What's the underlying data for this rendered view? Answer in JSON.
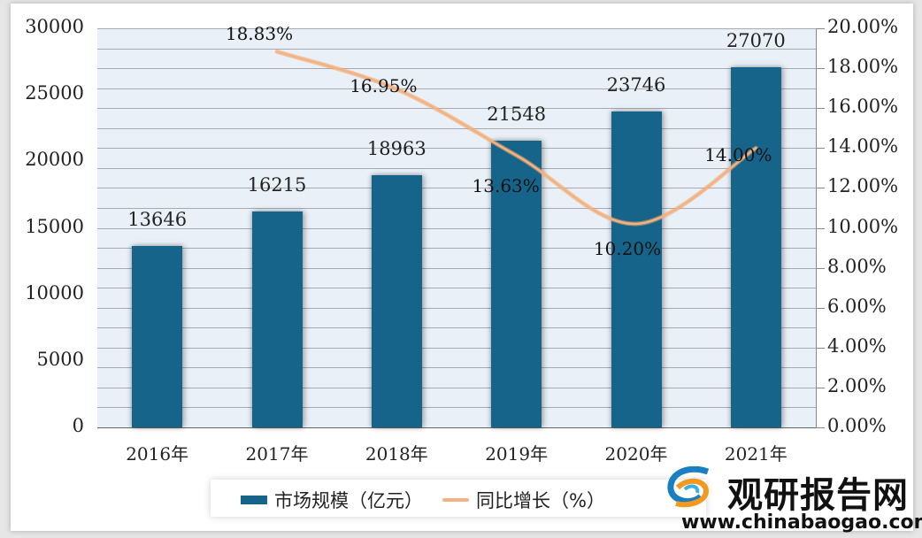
{
  "chart_data": {
    "type": "bar+line",
    "title": "",
    "categories": [
      "2016年",
      "2017年",
      "2018年",
      "2019年",
      "2020年",
      "2021年"
    ],
    "series": [
      {
        "name": "市场规模（亿元）",
        "type": "bar",
        "axis": "left",
        "color": "#17648a",
        "values": [
          13646,
          16215,
          18963,
          21548,
          23746,
          27070
        ]
      },
      {
        "name": "同比增长（%）",
        "type": "line",
        "axis": "right",
        "color": "#f4b183",
        "values": [
          null,
          18.83,
          16.95,
          13.63,
          10.2,
          14.0
        ]
      }
    ],
    "bar_labels": [
      "13646",
      "16215",
      "18963",
      "21548",
      "23746",
      "27070"
    ],
    "line_labels": [
      "18.83%",
      "16.95%",
      "13.63%",
      "10.20%",
      "14.00%"
    ],
    "left_axis": {
      "ylim": [
        0,
        30000
      ],
      "ticks": [
        "30000",
        "25000",
        "20000",
        "15000",
        "10000",
        "5000",
        "0"
      ]
    },
    "right_axis": {
      "ylim": [
        0,
        20
      ],
      "ticks": [
        "20.00%",
        "18.00%",
        "16.00%",
        "14.00%",
        "12.00%",
        "10.00%",
        "8.00%",
        "6.00%",
        "4.00%",
        "2.00%",
        "0.00%"
      ]
    },
    "grid": true,
    "legend_position": "bottom"
  },
  "legend": {
    "bar_label": "市场规模（亿元）",
    "line_label": "同比增长（%）"
  },
  "watermark": {
    "name": "观研报告网",
    "url": "www.chinabaogao.com"
  }
}
